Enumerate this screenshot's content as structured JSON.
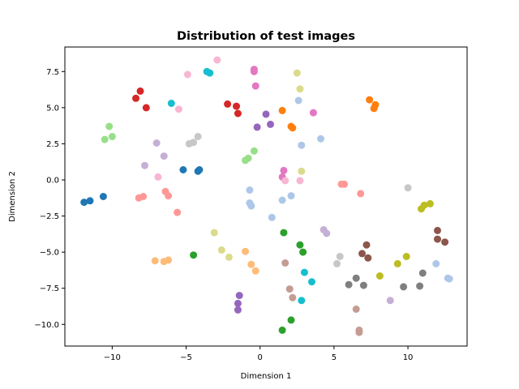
{
  "chart_data": {
    "type": "scatter",
    "title": "Distribution of test images",
    "xlabel": "Dimension 1",
    "ylabel": "Dimension 2",
    "xlim": [
      -13.2,
      14.0
    ],
    "ylim": [
      -11.5,
      9.2
    ],
    "xticks": [
      -10,
      -5,
      0,
      5,
      10
    ],
    "yticks": [
      -10.0,
      -7.5,
      -5.0,
      -2.5,
      0.0,
      2.5,
      5.0,
      7.5
    ],
    "grid": false,
    "legend": false,
    "series": [
      {
        "color": "#1f77b4",
        "points": [
          [
            -11.9,
            -1.55
          ],
          [
            -11.5,
            -1.45
          ],
          [
            -10.6,
            -1.15
          ],
          [
            -5.2,
            0.7
          ],
          [
            -4.2,
            0.6
          ],
          [
            -4.1,
            0.7
          ]
        ]
      },
      {
        "color": "#aec7e8",
        "points": [
          [
            -0.7,
            -0.7
          ],
          [
            -0.7,
            -1.6
          ],
          [
            -0.6,
            -1.8
          ],
          [
            0.8,
            -2.6
          ],
          [
            1.5,
            -1.4
          ],
          [
            2.1,
            -1.1
          ],
          [
            2.6,
            5.5
          ],
          [
            2.8,
            2.4
          ],
          [
            4.1,
            2.85
          ],
          [
            11.9,
            -5.8
          ],
          [
            12.7,
            -6.8
          ],
          [
            12.8,
            -6.85
          ]
        ]
      },
      {
        "color": "#ff7f0e",
        "points": [
          [
            1.5,
            4.8
          ],
          [
            2.1,
            3.7
          ],
          [
            2.2,
            3.6
          ],
          [
            7.4,
            5.55
          ],
          [
            7.7,
            4.95
          ],
          [
            7.8,
            5.2
          ]
        ]
      },
      {
        "color": "#ffbb78",
        "points": [
          [
            -7.1,
            -5.6
          ],
          [
            -6.5,
            -5.65
          ],
          [
            -6.2,
            -5.55
          ],
          [
            -1.0,
            -4.95
          ],
          [
            -0.6,
            -5.85
          ],
          [
            -0.3,
            -6.3
          ]
        ]
      },
      {
        "color": "#2ca02c",
        "points": [
          [
            -4.5,
            -5.2
          ],
          [
            1.6,
            -3.65
          ],
          [
            2.7,
            -4.5
          ],
          [
            2.9,
            -5.0
          ],
          [
            1.5,
            -10.4
          ],
          [
            2.1,
            -9.7
          ]
        ]
      },
      {
        "color": "#98df8a",
        "points": [
          [
            -10.5,
            2.8
          ],
          [
            -10.2,
            3.7
          ],
          [
            -10.0,
            3.0
          ],
          [
            -1.0,
            1.35
          ],
          [
            -0.8,
            1.5
          ],
          [
            -0.4,
            2.0
          ]
        ]
      },
      {
        "color": "#d62728",
        "points": [
          [
            -8.4,
            5.65
          ],
          [
            -8.1,
            6.15
          ],
          [
            -7.7,
            5.0
          ],
          [
            -2.2,
            5.25
          ],
          [
            -1.6,
            5.1
          ],
          [
            -1.5,
            4.6
          ]
        ]
      },
      {
        "color": "#ff9896",
        "points": [
          [
            -8.2,
            -1.25
          ],
          [
            -7.9,
            -1.15
          ],
          [
            -6.4,
            -0.8
          ],
          [
            -6.2,
            -1.1
          ],
          [
            -5.6,
            -2.25
          ],
          [
            5.5,
            -0.3
          ],
          [
            5.7,
            -0.3
          ],
          [
            6.8,
            -0.95
          ]
        ]
      },
      {
        "color": "#9467bd",
        "points": [
          [
            -0.2,
            3.65
          ],
          [
            0.4,
            4.55
          ],
          [
            0.7,
            3.85
          ],
          [
            -1.4,
            -8.0
          ],
          [
            -1.5,
            -8.55
          ],
          [
            -1.5,
            -9.0
          ]
        ]
      },
      {
        "color": "#c5b0d5",
        "points": [
          [
            -7.8,
            1.0
          ],
          [
            -7.0,
            2.55
          ],
          [
            -6.5,
            1.65
          ],
          [
            4.3,
            -3.45
          ],
          [
            4.5,
            -3.7
          ],
          [
            8.8,
            -8.35
          ]
        ]
      },
      {
        "color": "#8c564b",
        "points": [
          [
            6.9,
            -5.1
          ],
          [
            7.2,
            -4.5
          ],
          [
            7.3,
            -5.4
          ],
          [
            12.0,
            -3.5
          ],
          [
            12.0,
            -4.1
          ],
          [
            12.5,
            -4.3
          ]
        ]
      },
      {
        "color": "#c49c94",
        "points": [
          [
            1.7,
            -5.75
          ],
          [
            2.0,
            -7.55
          ],
          [
            2.2,
            -8.15
          ],
          [
            6.5,
            -8.95
          ],
          [
            6.7,
            -10.55
          ],
          [
            6.7,
            -10.4
          ]
        ]
      },
      {
        "color": "#e377c2",
        "points": [
          [
            -0.4,
            7.65
          ],
          [
            -0.4,
            7.5
          ],
          [
            -0.3,
            6.5
          ],
          [
            1.5,
            0.2
          ],
          [
            1.6,
            0.65
          ],
          [
            3.6,
            4.65
          ]
        ]
      },
      {
        "color": "#f7b6d2",
        "points": [
          [
            -6.9,
            0.2
          ],
          [
            -5.5,
            4.9
          ],
          [
            -4.9,
            7.3
          ],
          [
            -2.9,
            8.3
          ],
          [
            1.7,
            -0.05
          ],
          [
            2.7,
            -0.05
          ]
        ]
      },
      {
        "color": "#7f7f7f",
        "points": [
          [
            6.0,
            -7.25
          ],
          [
            6.5,
            -6.8
          ],
          [
            7.0,
            -7.3
          ],
          [
            9.7,
            -7.4
          ],
          [
            10.8,
            -7.35
          ],
          [
            11.0,
            -6.45
          ]
        ]
      },
      {
        "color": "#c7c7c7",
        "points": [
          [
            -4.8,
            2.5
          ],
          [
            -4.5,
            2.6
          ],
          [
            -4.2,
            3.0
          ],
          [
            5.2,
            -5.8
          ],
          [
            5.4,
            -5.3
          ],
          [
            10.0,
            -0.55
          ]
        ]
      },
      {
        "color": "#bcbd22",
        "points": [
          [
            8.1,
            -6.65
          ],
          [
            9.3,
            -5.8
          ],
          [
            9.9,
            -5.3
          ],
          [
            10.9,
            -2.0
          ],
          [
            11.1,
            -1.75
          ],
          [
            11.5,
            -1.65
          ]
        ]
      },
      {
        "color": "#dbdb8d",
        "points": [
          [
            -3.1,
            -3.65
          ],
          [
            -2.6,
            -4.85
          ],
          [
            -2.1,
            -5.35
          ],
          [
            2.5,
            7.4
          ],
          [
            2.7,
            6.3
          ],
          [
            2.8,
            0.6
          ]
        ]
      },
      {
        "color": "#17becf",
        "points": [
          [
            -6.0,
            5.3
          ],
          [
            -3.6,
            7.5
          ],
          [
            -3.4,
            7.4
          ],
          [
            3.0,
            -6.4
          ],
          [
            3.5,
            -7.05
          ],
          [
            2.8,
            -8.35
          ]
        ]
      },
      {
        "color": "#9edae5",
        "points": []
      }
    ]
  }
}
